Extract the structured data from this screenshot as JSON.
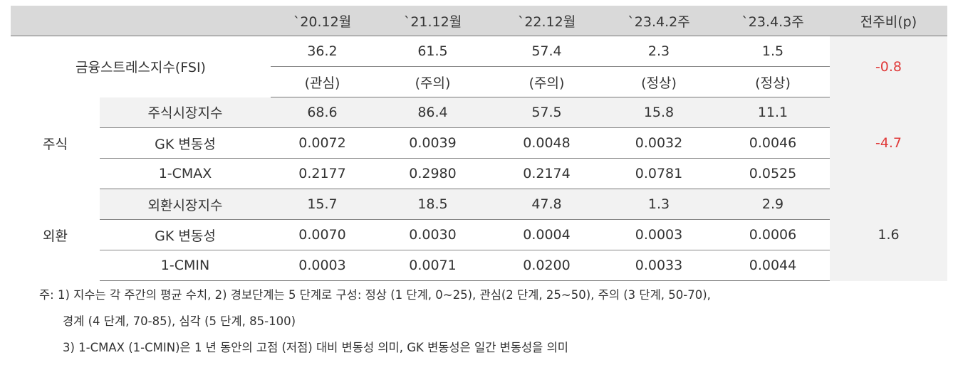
{
  "table": {
    "columns": [
      "`20.12월",
      "`21.12월",
      "`22.12월",
      "`23.4.2주",
      "`23.4.3주",
      "전주비(p)"
    ],
    "groups": [
      {
        "label": "금융스트레스지수(FSI)",
        "change": "-0.8",
        "rows": [
          {
            "values": [
              "36.2",
              "61.5",
              "57.4",
              "2.3",
              "1.5"
            ]
          },
          {
            "values": [
              "(관심)",
              "(주의)",
              "(주의)",
              "(정상)",
              "(정상)"
            ]
          }
        ]
      },
      {
        "label": "주식",
        "change": "-4.7",
        "rows": [
          {
            "label": "주식시장지수",
            "values": [
              "68.6",
              "86.4",
              "57.5",
              "15.8",
              "11.1"
            ]
          },
          {
            "label": "GK 변동성",
            "values": [
              "0.0072",
              "0.0039",
              "0.0048",
              "0.0032",
              "0.0046"
            ]
          },
          {
            "label": "1-CMAX",
            "values": [
              "0.2177",
              "0.2980",
              "0.2174",
              "0.0781",
              "0.0525"
            ]
          }
        ]
      },
      {
        "label": "외환",
        "change": "1.6",
        "rows": [
          {
            "label": "외환시장지수",
            "values": [
              "15.7",
              "18.5",
              "47.8",
              "1.3",
              "2.9"
            ]
          },
          {
            "label": "GK 변동성",
            "values": [
              "0.0070",
              "0.0030",
              "0.0004",
              "0.0003",
              "0.0006"
            ]
          },
          {
            "label": "1-CMIN",
            "values": [
              "0.0003",
              "0.0071",
              "0.0200",
              "0.0033",
              "0.0044"
            ]
          }
        ]
      }
    ],
    "notes": [
      "주: 1) 지수는 각 주간의 평균 수치, 2) 경보단계는 5 단계로 구성: 정상 (1 단계, 0~25), 관심(2 단계, 25~50), 주의 (3 단계, 50-70),",
      "경계 (4 단계, 70-85), 심각 (5 단계, 85-100)",
      "3) 1-CMAX (1-CMIN)은 1 년 동안의 고점 (저점) 대비 변동성 의미, GK 변동성은 일간 변동성을 의미"
    ]
  }
}
